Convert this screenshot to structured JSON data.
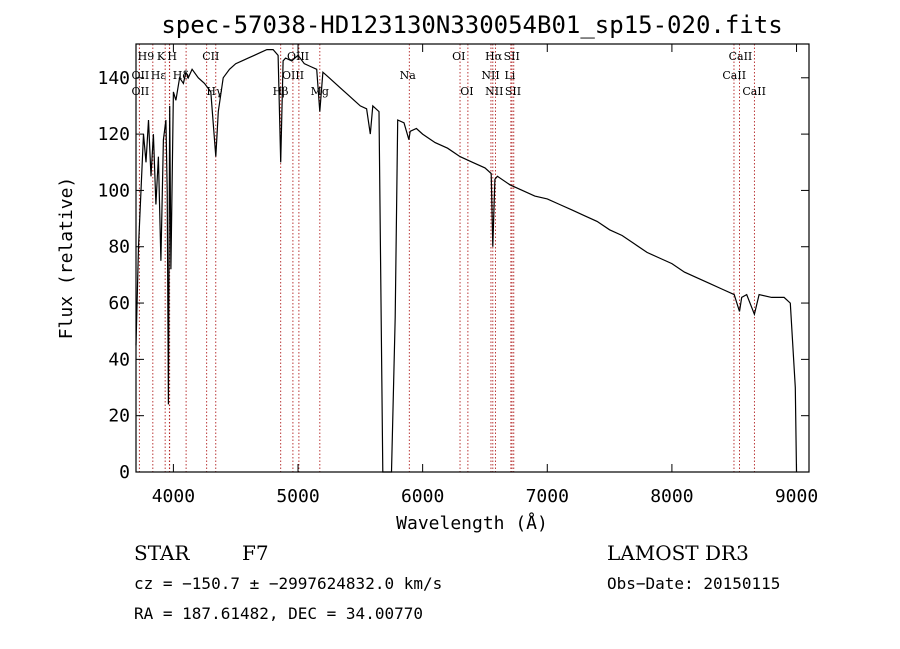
{
  "chart_data": {
    "type": "line",
    "title": "spec-57038-HD123130N330054B01_sp15-020.fits",
    "xlabel": "Wavelength (Å)",
    "ylabel": "Flux (relative)",
    "xlim": [
      3700,
      9100
    ],
    "ylim": [
      0,
      152
    ],
    "xticks": [
      4000,
      5000,
      6000,
      7000,
      8000,
      9000
    ],
    "yticks": [
      0,
      20,
      40,
      60,
      80,
      100,
      120,
      140
    ],
    "series": [
      {
        "name": "flux",
        "x": [
          3700,
          3720,
          3740,
          3760,
          3780,
          3800,
          3820,
          3840,
          3860,
          3880,
          3900,
          3920,
          3940,
          3950,
          3960,
          3970,
          3980,
          4000,
          4020,
          4050,
          4080,
          4100,
          4120,
          4150,
          4200,
          4250,
          4300,
          4340,
          4360,
          4400,
          4450,
          4500,
          4550,
          4600,
          4650,
          4700,
          4750,
          4800,
          4840,
          4861,
          4880,
          4900,
          4950,
          5000,
          5050,
          5100,
          5150,
          5175,
          5200,
          5250,
          5300,
          5350,
          5400,
          5450,
          5500,
          5550,
          5580,
          5600,
          5650,
          5680,
          5700,
          5750,
          5780,
          5800,
          5850,
          5890,
          5900,
          5950,
          6000,
          6100,
          6200,
          6300,
          6400,
          6500,
          6550,
          6563,
          6580,
          6600,
          6700,
          6800,
          6900,
          7000,
          7100,
          7200,
          7300,
          7400,
          7500,
          7600,
          7700,
          7800,
          7900,
          8000,
          8100,
          8200,
          8300,
          8400,
          8500,
          8542,
          8560,
          8600,
          8662,
          8700,
          8800,
          8900,
          8950,
          8990,
          9000
        ],
        "y": [
          45,
          80,
          100,
          120,
          110,
          125,
          105,
          120,
          95,
          112,
          75,
          118,
          125,
          100,
          24,
          130,
          72,
          135,
          132,
          140,
          138,
          142,
          140,
          143,
          140,
          138,
          135,
          112,
          128,
          140,
          143,
          145,
          146,
          147,
          148,
          149,
          150,
          150,
          148,
          110,
          146,
          147,
          146,
          148,
          145,
          144,
          143,
          128,
          142,
          140,
          138,
          136,
          134,
          132,
          130,
          129,
          120,
          130,
          128,
          0,
          0,
          0,
          55,
          125,
          124,
          118,
          121,
          122,
          120,
          117,
          115,
          112,
          110,
          108,
          106,
          80,
          104,
          105,
          102,
          100,
          98,
          97,
          95,
          93,
          91,
          89,
          86,
          84,
          81,
          78,
          76,
          74,
          71,
          69,
          67,
          65,
          63,
          57,
          62,
          63,
          56,
          63,
          62,
          62,
          60,
          30,
          0
        ]
      }
    ],
    "line_markers": [
      {
        "name": "H9",
        "wavelength": 3835
      },
      {
        "name": "K",
        "wavelength": 3934
      },
      {
        "name": "H",
        "wavelength": 3968
      },
      {
        "name": "CII",
        "wavelength": 4267
      },
      {
        "name": "OII",
        "wavelength": 3727
      },
      {
        "name": "Hε",
        "wavelength": 3970
      },
      {
        "name": "Hδ",
        "wavelength": 4102
      },
      {
        "name": "Hγ",
        "wavelength": 4340
      },
      {
        "name": "Hβ",
        "wavelength": 4861
      },
      {
        "name": "OIII",
        "wavelength": 4959
      },
      {
        "name": "OIII",
        "wavelength": 5007
      },
      {
        "name": "Mg",
        "wavelength": 5175
      },
      {
        "name": "Na",
        "wavelength": 5893
      },
      {
        "name": "OI",
        "wavelength": 6300
      },
      {
        "name": "OI",
        "wavelength": 6363
      },
      {
        "name": "Hα",
        "wavelength": 6563
      },
      {
        "name": "NII",
        "wavelength": 6548
      },
      {
        "name": "NII",
        "wavelength": 6584
      },
      {
        "name": "SII",
        "wavelength": 6717
      },
      {
        "name": "SII",
        "wavelength": 6731
      },
      {
        "name": "Li",
        "wavelength": 6708
      },
      {
        "name": "CaII",
        "wavelength": 8498
      },
      {
        "name": "CaII",
        "wavelength": 8542
      },
      {
        "name": "CaII",
        "wavelength": 8662
      }
    ],
    "line_labels": [
      {
        "text": "H9",
        "x": 3780,
        "row": 0
      },
      {
        "text": "K",
        "x": 3900,
        "row": 0
      },
      {
        "text": "H",
        "x": 3990,
        "row": 0
      },
      {
        "text": "CII",
        "x": 4300,
        "row": 0
      },
      {
        "text": "OIII",
        "x": 5000,
        "row": 0
      },
      {
        "text": "OI",
        "x": 6290,
        "row": 0
      },
      {
        "text": "Hα",
        "x": 6570,
        "row": 0
      },
      {
        "text": "SII",
        "x": 6715,
        "row": 0
      },
      {
        "text": "CaII",
        "x": 8550,
        "row": 0
      },
      {
        "text": "OII",
        "x": 3735,
        "row": 1
      },
      {
        "text": "Hε",
        "x": 3880,
        "row": 1
      },
      {
        "text": "Hδ",
        "x": 4060,
        "row": 1
      },
      {
        "text": "OIII",
        "x": 4960,
        "row": 1
      },
      {
        "text": "Na",
        "x": 5880,
        "row": 1
      },
      {
        "text": "NII",
        "x": 6545,
        "row": 1
      },
      {
        "text": "Li",
        "x": 6700,
        "row": 1
      },
      {
        "text": "CaII",
        "x": 8500,
        "row": 1
      },
      {
        "text": "OII",
        "x": 3735,
        "row": 2
      },
      {
        "text": "Hγ",
        "x": 4330,
        "row": 2
      },
      {
        "text": "Hβ",
        "x": 4860,
        "row": 2
      },
      {
        "text": "Mg",
        "x": 5175,
        "row": 2
      },
      {
        "text": "OI",
        "x": 6355,
        "row": 2
      },
      {
        "text": "NII",
        "x": 6575,
        "row": 2
      },
      {
        "text": "SII",
        "x": 6725,
        "row": 2
      },
      {
        "text": "CaII",
        "x": 8660,
        "row": 2
      }
    ],
    "colors": {
      "spectrum": "#000000",
      "markers": "#b22222",
      "axes": "#000000"
    }
  },
  "info": {
    "object_type": "STAR",
    "subclass": "F7",
    "survey": "LAMOST DR3",
    "cz": "cz = −150.7 ± −2997624832.0 km/s",
    "obs_date": "Obs−Date: 20150115",
    "coords": "RA = 187.61482, DEC =  34.00770"
  }
}
